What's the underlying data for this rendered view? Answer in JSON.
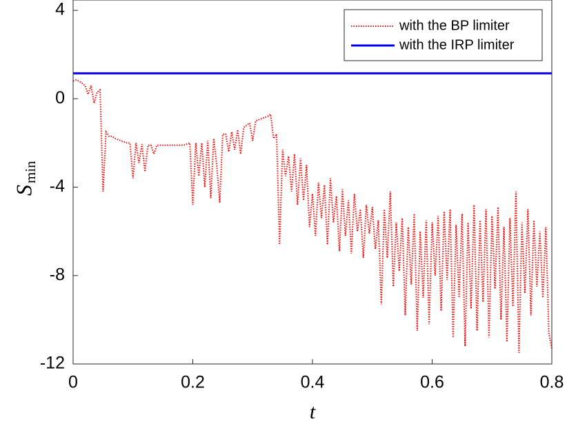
{
  "chart_data": {
    "type": "line",
    "xlabel": "t",
    "ylabel": "S",
    "ylabel_subscript": "min",
    "xlim": [
      0,
      0.8
    ],
    "ylim": [
      -12,
      4.5
    ],
    "xticks": [
      0,
      0.2,
      0.4,
      0.6,
      0.8
    ],
    "yticks": [
      -12,
      -8,
      -4,
      0,
      4
    ],
    "legend": "upper right",
    "series": [
      {
        "name": "with the BP limiter",
        "color": "#ff0000",
        "style": "dotted",
        "x": [
          0,
          0.005,
          0.01,
          0.015,
          0.02,
          0.025,
          0.03,
          0.035,
          0.04,
          0.045,
          0.05,
          0.055,
          0.06,
          0.065,
          0.07,
          0.075,
          0.08,
          0.085,
          0.09,
          0.095,
          0.1,
          0.105,
          0.11,
          0.115,
          0.12,
          0.125,
          0.13,
          0.135,
          0.14,
          0.145,
          0.15,
          0.155,
          0.16,
          0.165,
          0.17,
          0.175,
          0.18,
          0.185,
          0.19,
          0.195,
          0.2,
          0.205,
          0.21,
          0.215,
          0.22,
          0.225,
          0.23,
          0.235,
          0.24,
          0.245,
          0.25,
          0.255,
          0.26,
          0.265,
          0.27,
          0.275,
          0.28,
          0.285,
          0.29,
          0.295,
          0.3,
          0.305,
          0.31,
          0.315,
          0.32,
          0.325,
          0.33,
          0.335,
          0.34,
          0.345,
          0.35,
          0.355,
          0.36,
          0.365,
          0.37,
          0.375,
          0.38,
          0.385,
          0.39,
          0.395,
          0.4,
          0.405,
          0.41,
          0.415,
          0.42,
          0.425,
          0.43,
          0.435,
          0.44,
          0.445,
          0.45,
          0.455,
          0.46,
          0.465,
          0.47,
          0.475,
          0.48,
          0.485,
          0.49,
          0.495,
          0.5,
          0.505,
          0.51,
          0.515,
          0.52,
          0.525,
          0.53,
          0.535,
          0.54,
          0.545,
          0.55,
          0.555,
          0.56,
          0.565,
          0.57,
          0.575,
          0.58,
          0.585,
          0.59,
          0.595,
          0.6,
          0.605,
          0.61,
          0.615,
          0.62,
          0.625,
          0.63,
          0.635,
          0.64,
          0.645,
          0.65,
          0.655,
          0.66,
          0.665,
          0.67,
          0.675,
          0.68,
          0.685,
          0.69,
          0.695,
          0.7,
          0.705,
          0.71,
          0.715,
          0.72,
          0.725,
          0.73,
          0.735,
          0.74,
          0.745,
          0.75,
          0.755,
          0.76,
          0.765,
          0.77,
          0.775,
          0.78,
          0.785,
          0.79,
          0.795,
          0.8
        ],
        "values": [
          0.8,
          0.85,
          0.8,
          0.7,
          0.6,
          0.2,
          0.6,
          -0.2,
          0.3,
          0.4,
          -4.2,
          -1.5,
          -1.7,
          -1.7,
          -1.8,
          -1.85,
          -1.9,
          -1.95,
          -2.0,
          -2.0,
          -3.6,
          -2.0,
          -2.9,
          -2.05,
          -3.3,
          -2.1,
          -2.1,
          -2.5,
          -2.1,
          -2.1,
          -2.1,
          -2.1,
          -2.1,
          -2.1,
          -2.1,
          -2.1,
          -2.1,
          -2.1,
          -2.05,
          -2.0,
          -4.8,
          -2.0,
          -3.5,
          -2.0,
          -4.0,
          -1.9,
          -4.5,
          -1.8,
          -3.0,
          -4.7,
          -1.6,
          -1.6,
          -2.4,
          -1.5,
          -2.3,
          -1.4,
          -2.5,
          -1.3,
          -1.2,
          -1.1,
          -1.9,
          -1.0,
          -0.95,
          -0.9,
          -0.85,
          -0.8,
          -0.7,
          -1.8,
          -1.6,
          -6.6,
          -2.3,
          -3.5,
          -2.6,
          -4.2,
          -2.5,
          -4.8,
          -2.7,
          -4.6,
          -3.0,
          -5.8,
          -4.3,
          -6.2,
          -3.8,
          -5.4,
          -3.9,
          -6.6,
          -3.6,
          -5.6,
          -4.4,
          -6.9,
          -4.1,
          -6.2,
          -4.6,
          -7.0,
          -4.3,
          -6.0,
          -5.0,
          -7.2,
          -4.8,
          -6.1,
          -4.9,
          -6.8,
          -5.5,
          -9.3,
          -5.0,
          -7.2,
          -4.2,
          -8.5,
          -5.6,
          -7.8,
          -5.4,
          -9.8,
          -5.8,
          -8.4,
          -5.2,
          -10.5,
          -6.0,
          -9.0,
          -5.5,
          -10.2,
          -5.6,
          -8.0,
          -5.3,
          -9.6,
          -5.1,
          -8.2,
          -5.0,
          -10.8,
          -5.7,
          -9.0,
          -5.2,
          -11.2,
          -5.6,
          -9.5,
          -4.8,
          -10.5,
          -5.5,
          -9.2,
          -5.0,
          -10.8,
          -5.3,
          -8.6,
          -4.9,
          -10.0,
          -5.8,
          -11.0,
          -5.4,
          -9.4,
          -4.2,
          -11.5,
          -5.6,
          -8.8,
          -5.0,
          -9.8,
          -5.5,
          -8.5,
          -6.0,
          -9.0,
          -5.8,
          -10.6,
          -11.3
        ]
      },
      {
        "name": "with the IRP limiter",
        "color": "#0000ee",
        "style": "solid",
        "x": [
          0,
          0.8
        ],
        "values": [
          1.15,
          1.15
        ]
      }
    ]
  }
}
